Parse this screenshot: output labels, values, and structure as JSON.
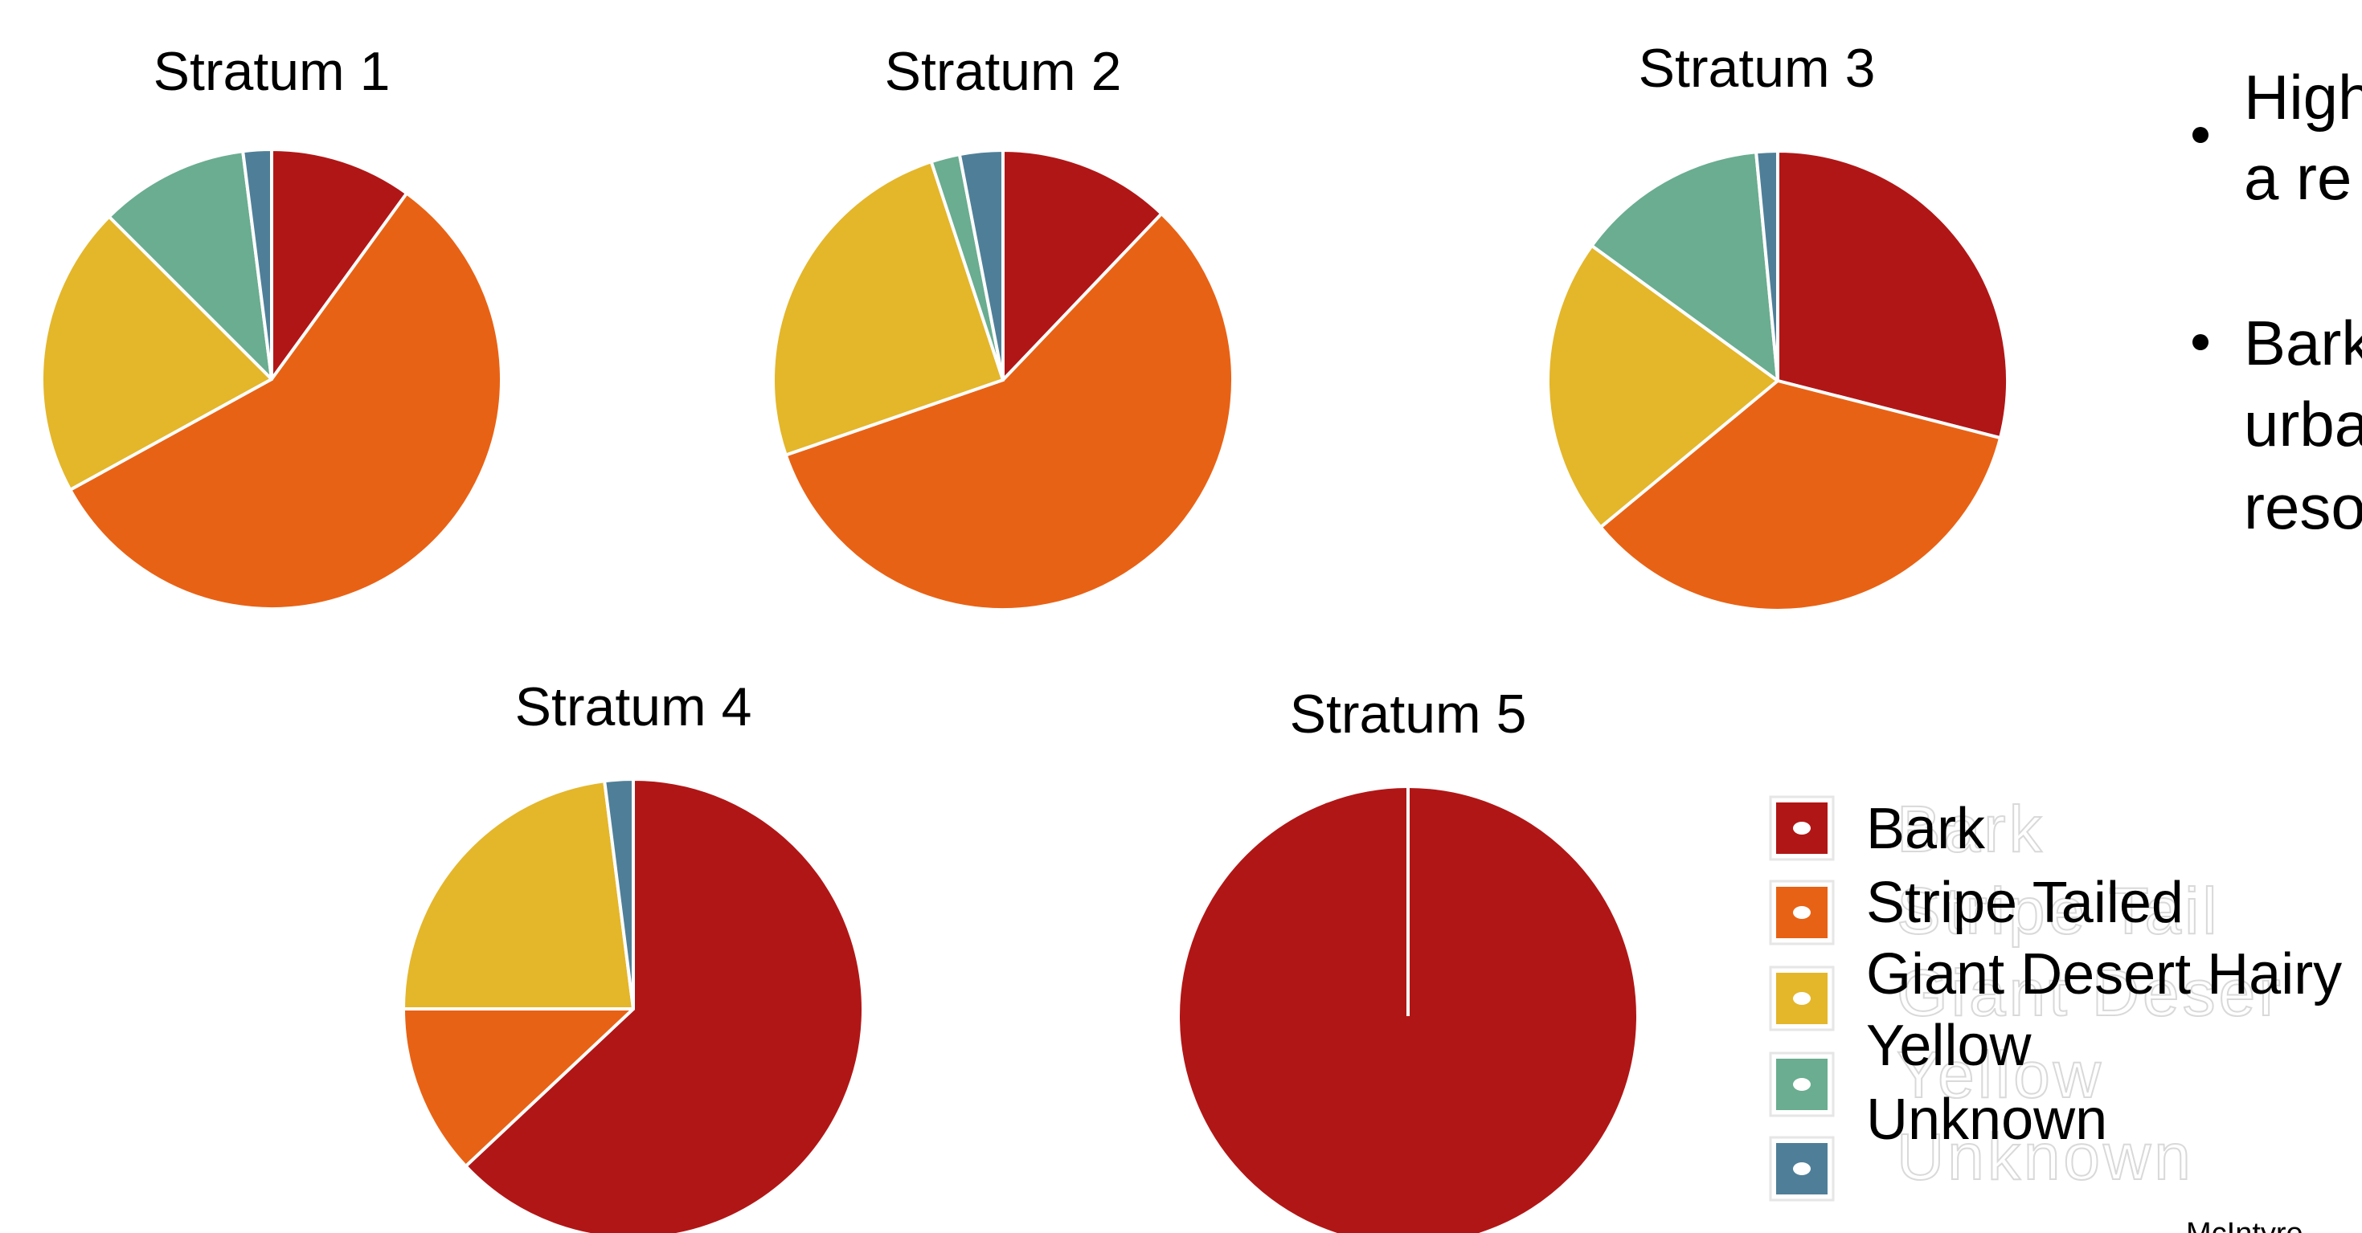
{
  "colors": {
    "Bark": "#b11616",
    "Stripe Tailed": "#e86215",
    "Giant Desert Hairy": "#e4b62a",
    "Yellow": "#6aad90",
    "Unknown": "#4f7f98"
  },
  "chart_data": [
    {
      "type": "pie",
      "title": "Stratum 1",
      "categories": [
        "Bark",
        "Stripe Tailed",
        "Giant Desert Hairy",
        "Yellow",
        "Unknown"
      ],
      "values": [
        10,
        57,
        20.5,
        10.5,
        2
      ]
    },
    {
      "type": "pie",
      "title": "Stratum 2",
      "categories": [
        "Bark",
        "Stripe Tailed",
        "Giant Desert Hairy",
        "Yellow",
        "Unknown"
      ],
      "values": [
        12,
        57,
        25,
        2,
        3
      ]
    },
    {
      "type": "pie",
      "title": "Stratum 3",
      "categories": [
        "Bark",
        "Stripe Tailed",
        "Giant Desert Hairy",
        "Yellow",
        "Unknown"
      ],
      "values": [
        29,
        35,
        21,
        13.5,
        1.5
      ]
    },
    {
      "type": "pie",
      "title": "Stratum 4",
      "categories": [
        "Bark",
        "Stripe Tailed",
        "Giant Desert Hairy",
        "Yellow",
        "Unknown"
      ],
      "values": [
        63,
        12,
        23,
        0,
        2
      ]
    },
    {
      "type": "pie",
      "title": "Stratum 5",
      "categories": [
        "Bark",
        "Stripe Tailed",
        "Giant Desert Hairy",
        "Yellow",
        "Unknown"
      ],
      "values": [
        100,
        0,
        0,
        0,
        0
      ]
    }
  ],
  "legend": {
    "items": [
      "Bark",
      "Stripe Tailed",
      "Giant Desert Hairy",
      "Yellow",
      "Unknown"
    ],
    "ghost_items": [
      "Bark",
      "Stripe Tail",
      "Giant Deser",
      "Yellow",
      "Unknown"
    ]
  },
  "bullets": [
    {
      "lines": [
        "High",
        "a re"
      ]
    },
    {
      "lines": [
        "Bark",
        "urba",
        "reso"
      ]
    }
  ],
  "citation": "McIntyre"
}
